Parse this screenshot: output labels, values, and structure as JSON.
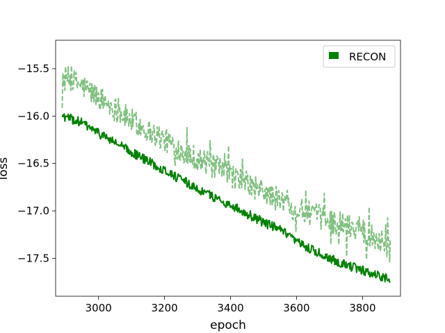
{
  "chart_data": {
    "type": "line",
    "title": "",
    "xlabel": "epoch",
    "ylabel": "loss",
    "xlim": [
      2870,
      3915
    ],
    "ylim": [
      -17.9,
      -15.2
    ],
    "xticks": [
      3000,
      3200,
      3400,
      3600,
      3800
    ],
    "xtick_labels": [
      "3000",
      "3200",
      "3400",
      "3600",
      "3800"
    ],
    "yticks": [
      -15.5,
      -16.0,
      -16.5,
      -17.0,
      -17.5
    ],
    "ytick_labels": [
      "−15.5",
      "−16.0",
      "−16.5",
      "−17.0",
      "−17.5"
    ],
    "grid": false,
    "legend": {
      "placement": "top-right",
      "entries": [
        "RECON"
      ]
    },
    "x_range": [
      2890,
      3885
    ],
    "series": [
      {
        "name": "RECON",
        "style": "solid",
        "color": "#008000",
        "anchors_x": [
          2890,
          2950,
          3000,
          3100,
          3200,
          3300,
          3400,
          3500,
          3550,
          3600,
          3700,
          3800,
          3885
        ],
        "anchors_y": [
          -16.0,
          -16.07,
          -16.18,
          -16.38,
          -16.57,
          -16.77,
          -16.94,
          -17.12,
          -17.2,
          -17.33,
          -17.5,
          -17.63,
          -17.72
        ],
        "noise_amplitude": 0.05
      },
      {
        "style": "dashed",
        "color": "#80c080",
        "anchors_x": [
          2890,
          2950,
          3000,
          3100,
          3200,
          3300,
          3400,
          3500,
          3600,
          3700,
          3800,
          3885
        ],
        "anchors_y": [
          -15.58,
          -15.68,
          -15.8,
          -16.05,
          -16.25,
          -16.45,
          -16.62,
          -16.8,
          -16.98,
          -17.1,
          -17.2,
          -17.38
        ],
        "noise_amplitude": 0.13
      }
    ]
  }
}
